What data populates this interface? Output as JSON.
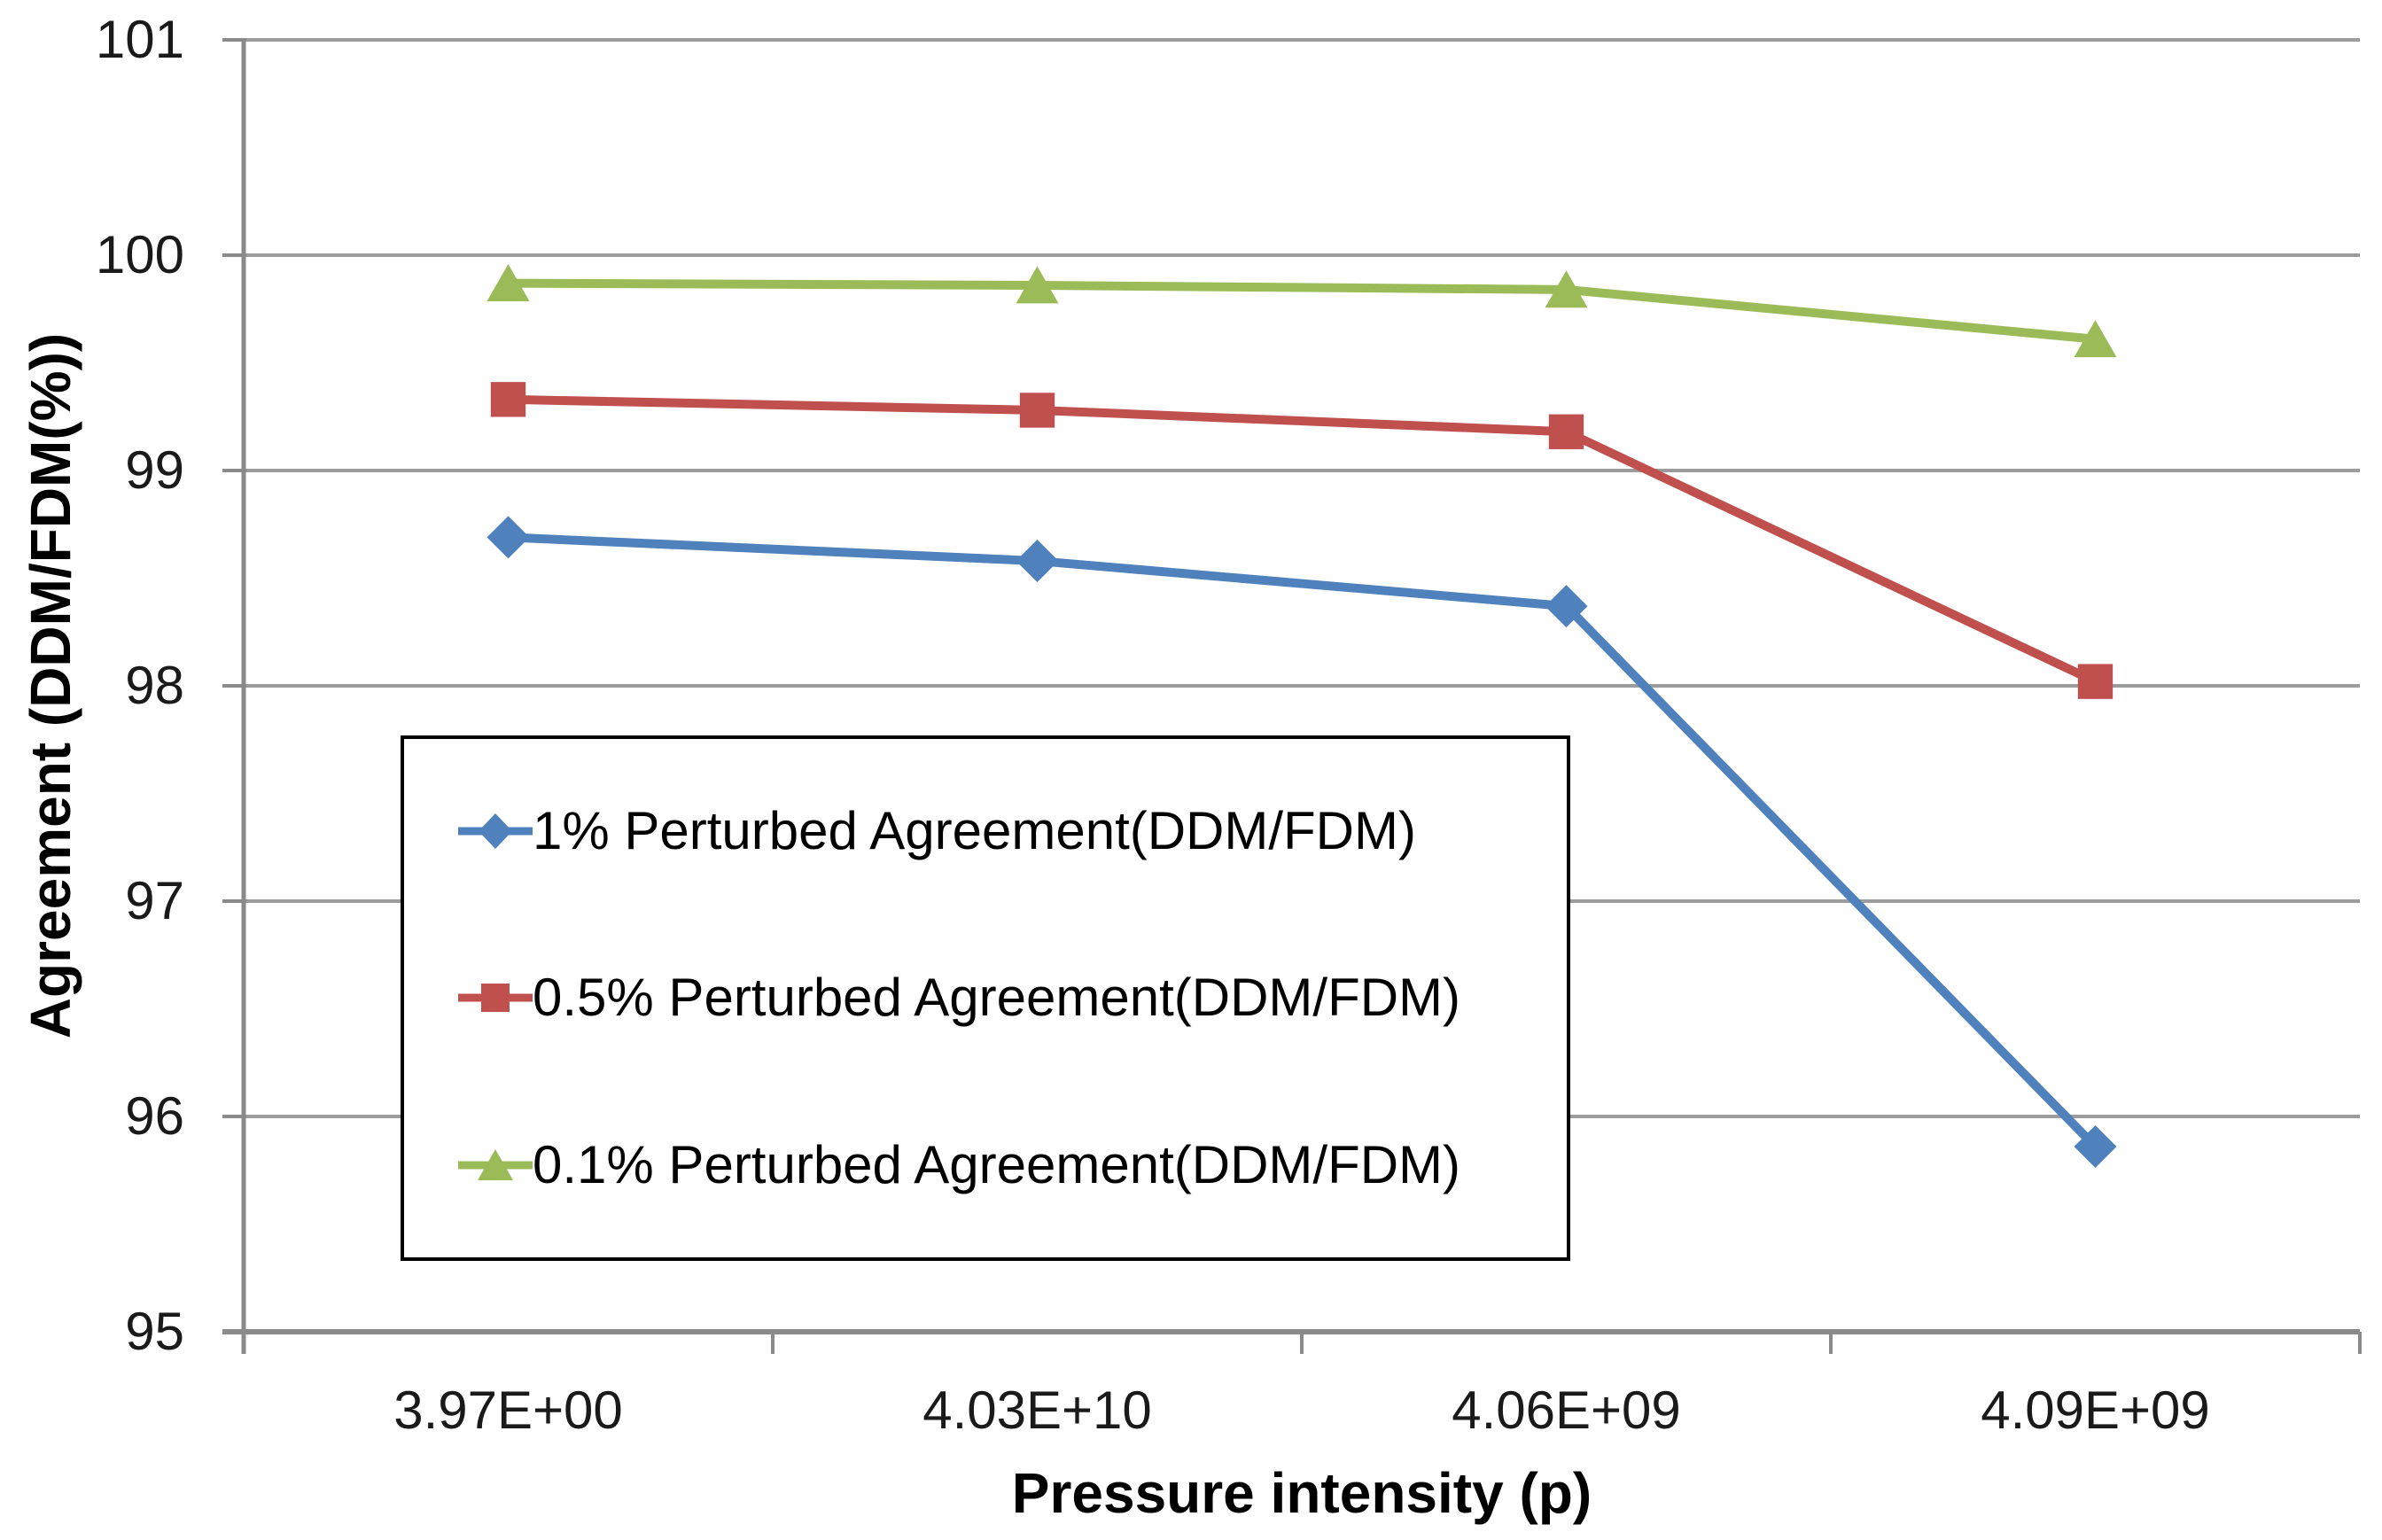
{
  "chart_data": {
    "type": "line",
    "title": "",
    "xlabel": "Pressure intensity (p)",
    "ylabel": "Agreement (DDM/FDM(%))",
    "categories": [
      "3.97E+00",
      "4.03E+10",
      "4.06E+09",
      "4.09E+09"
    ],
    "series": [
      {
        "name": "1% Perturbed Agreement(DDM/FDM)",
        "marker": "diamond",
        "color": "#4F81BD",
        "values": [
          98.69,
          98.58,
          98.37,
          95.86
        ]
      },
      {
        "name": "0.5% Perturbed Agreement(DDM/FDM)",
        "marker": "square",
        "color": "#C0504D",
        "values": [
          99.33,
          99.28,
          99.18,
          98.02
        ]
      },
      {
        "name": "0.1% Perturbed Agreement(DDM/FDM)",
        "marker": "triangle",
        "color": "#9BBB59",
        "values": [
          99.87,
          99.86,
          99.84,
          99.61
        ]
      }
    ],
    "ylim": [
      95,
      101
    ],
    "y_tick_step": 1,
    "y_tick_labels": [
      "95",
      "96",
      "97",
      "98",
      "99",
      "100",
      "101"
    ],
    "grid": true,
    "legend_position": "middle-left-box",
    "colors": {
      "gridline": "#9C9C9C",
      "axis": "#8A8A8A",
      "tick_text": "#1A1A1A",
      "legend_border": "#000000",
      "background": "#FFFFFF"
    }
  }
}
